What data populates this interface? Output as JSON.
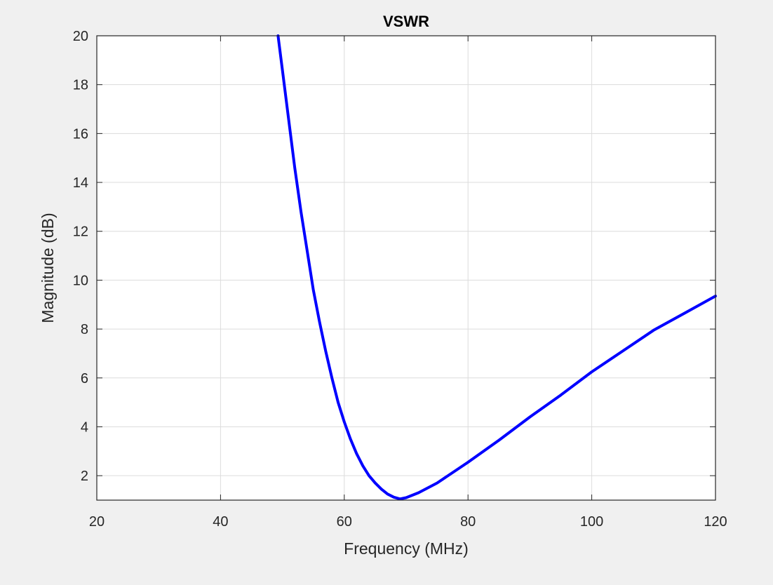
{
  "chart_data": {
    "type": "line",
    "title": "VSWR",
    "xlabel": "Frequency (MHz)",
    "ylabel": "Magnitude (dB)",
    "xlim": [
      20,
      120
    ],
    "ylim": [
      1,
      20
    ],
    "xticks": [
      20,
      40,
      60,
      80,
      100,
      120
    ],
    "yticks": [
      2,
      4,
      6,
      8,
      10,
      12,
      14,
      16,
      18,
      20
    ],
    "xtick_labels": [
      "20",
      "40",
      "60",
      "80",
      "100",
      "120"
    ],
    "ytick_labels": [
      "2",
      "4",
      "6",
      "8",
      "10",
      "12",
      "14",
      "16",
      "18",
      "20"
    ],
    "grid": true,
    "legend": null,
    "series": [
      {
        "color": "#0000ff",
        "x": [
          49.3,
          50,
          51,
          52,
          53,
          54,
          55,
          56,
          57,
          58,
          59,
          60,
          61,
          62,
          63,
          64,
          65,
          66,
          67,
          68,
          69,
          70,
          72,
          75,
          80,
          85,
          90,
          95,
          100,
          105,
          110,
          115,
          120
        ],
        "y": [
          20.0,
          18.6,
          16.6,
          14.6,
          12.8,
          11.2,
          9.6,
          8.3,
          7.1,
          6.0,
          5.0,
          4.2,
          3.5,
          2.9,
          2.4,
          2.0,
          1.7,
          1.45,
          1.25,
          1.12,
          1.05,
          1.1,
          1.3,
          1.7,
          2.55,
          3.45,
          4.4,
          5.3,
          6.25,
          7.1,
          7.95,
          8.65,
          9.35
        ]
      }
    ]
  }
}
